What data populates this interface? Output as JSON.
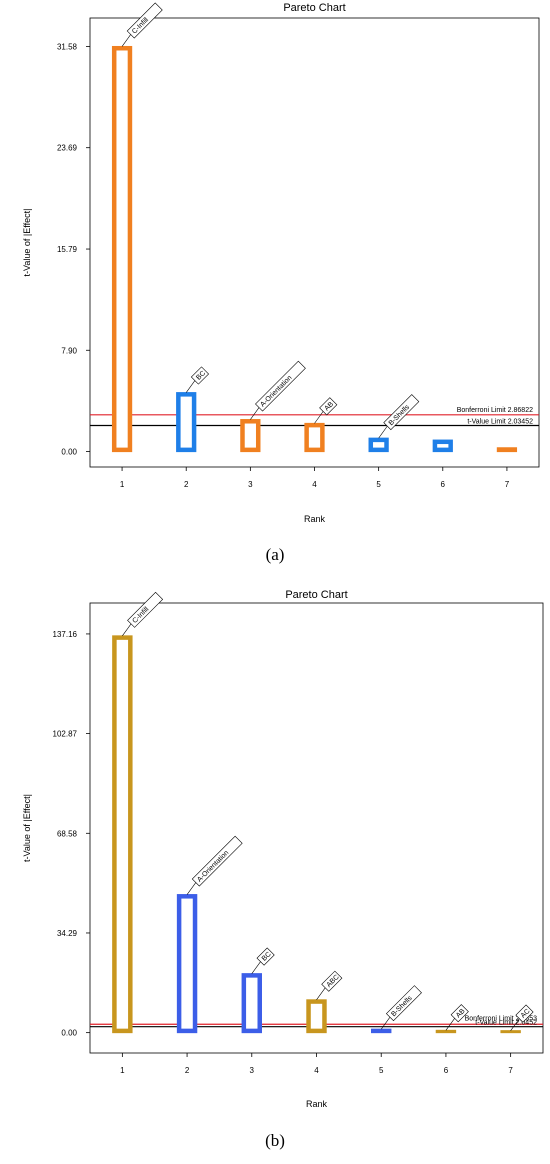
{
  "chart_data": [
    {
      "type": "bar",
      "panel_label": "(a)",
      "title": "Pareto Chart",
      "xlabel": "Rank",
      "ylabel": "t-Value of |Effect|",
      "categories": [
        "1",
        "2",
        "3",
        "4",
        "5",
        "6",
        "7"
      ],
      "values": [
        31.58,
        4.6,
        2.5,
        2.2,
        1.05,
        0.9,
        0.3
      ],
      "labels": [
        "C-Infill",
        "BC",
        "A-Orientation",
        "AB",
        "B-Shells",
        "",
        ""
      ],
      "effect_sign": [
        "positive",
        "negative",
        "positive",
        "positive",
        "negative",
        "negative",
        "positive"
      ],
      "yticks": [
        "0.00",
        "7.90",
        "15.79",
        "23.69",
        "31.58"
      ],
      "ytick_values": [
        0,
        7.9,
        15.79,
        23.69,
        31.58
      ],
      "ylim": [
        -1.2,
        33.8
      ],
      "limits": [
        {
          "name": "Bonferroni Limit 2.86822",
          "value": 2.86822,
          "color": "#e0202a"
        },
        {
          "name": "t-Value Limit 2.03452",
          "value": 2.03452,
          "color": "#000000"
        }
      ],
      "colors": {
        "positive": "#f08020",
        "negative": "#1f7fe8"
      }
    },
    {
      "type": "bar",
      "panel_label": "(b)",
      "title": "Pareto Chart",
      "xlabel": "Rank",
      "ylabel": "t-Value of |Effect|",
      "categories": [
        "1",
        "2",
        "3",
        "4",
        "5",
        "6",
        "7"
      ],
      "values": [
        136.5,
        47.5,
        20.3,
        11.3,
        1.2,
        0.8,
        0.6
      ],
      "labels": [
        "C-Infill",
        "A-Orientation",
        "BC",
        "ABC",
        "B-Shells",
        "AB",
        "AC"
      ],
      "effect_sign": [
        "positive",
        "negative",
        "negative",
        "positive",
        "negative",
        "positive",
        "positive"
      ],
      "yticks": [
        "0.00",
        "34.29",
        "68.58",
        "102.87",
        "137.16"
      ],
      "ytick_values": [
        0,
        34.29,
        68.58,
        102.87,
        137.16
      ],
      "ylim": [
        -7,
        147.8
      ],
      "limits": [
        {
          "name": "Bonferroni Limit 2.8853",
          "value": 2.8853,
          "color": "#e0202a"
        },
        {
          "name": "t-Value Limit 2.0452",
          "value": 2.0452,
          "color": "#000000"
        }
      ],
      "colors": {
        "positive": "#c8961e",
        "negative": "#3c5ee8"
      }
    }
  ]
}
